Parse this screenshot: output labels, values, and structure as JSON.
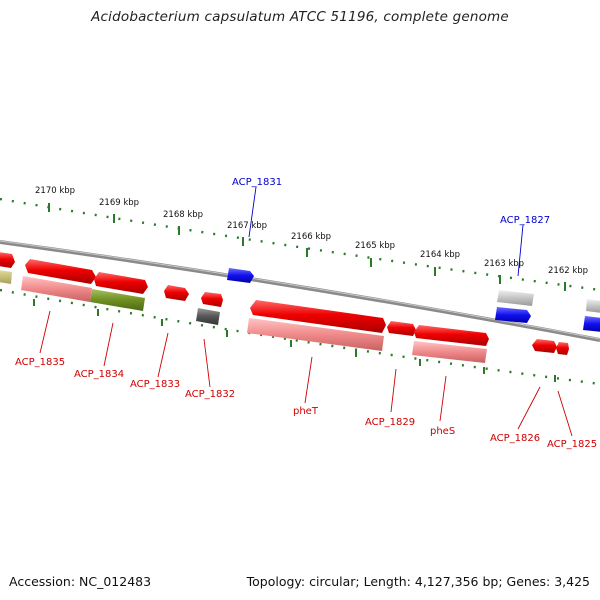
{
  "title": "Acidobacterium capsulatum ATCC 51196, complete genome",
  "footer": {
    "accession": "Accession: NC_012483",
    "topology": "Topology: circular; Length: 4,127,356 bp; Genes: 3,425"
  },
  "colors": {
    "forward_gene": "#e00000",
    "pseudo_gene": "#2a2ae0",
    "gene_label_red": "#d00000",
    "gene_label_blue": "#0000cc",
    "scale_ticks": "#2a7a2a",
    "backbone": "#808080"
  },
  "scale_labels": [
    "2170 kbp",
    "2169 kbp",
    "2168 kbp",
    "2167 kbp",
    "2166 kbp",
    "2165 kbp",
    "2164 kbp",
    "2163 kbp",
    "2162 kbp"
  ],
  "top_gene_labels": [
    "ACP_1831",
    "ACP_1827"
  ],
  "bottom_gene_labels": [
    "ACP_1835",
    "ACP_1834",
    "ACP_1833",
    "ACP_1832",
    "pheT",
    "ACP_1829",
    "pheS",
    "ACP_1826",
    "ACP_1825"
  ]
}
